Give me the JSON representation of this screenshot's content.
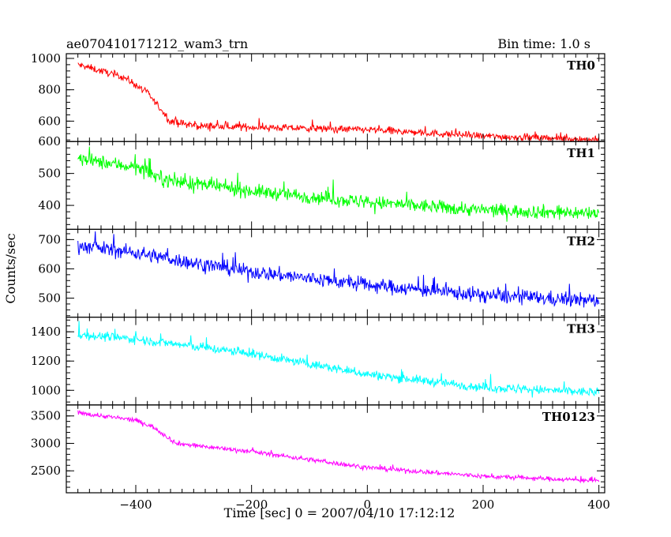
{
  "header": {
    "title": "ae070410171212_wam3_trn",
    "bin_time": "Bin time: 1.0 s"
  },
  "axes": {
    "xlabel": "Time [sec] 0 = 2007/04/10 17:12:12",
    "ylabel": "Counts/sec"
  },
  "chart_data": [
    {
      "type": "line",
      "name": "TH0",
      "color": "#ff0000",
      "x_range": [
        -500,
        400
      ],
      "ylim": [
        470,
        1030
      ],
      "y_ticks": [
        {
          "v": 600,
          "label": "600"
        },
        {
          "v": 800,
          "label": "800"
        },
        {
          "v": 1000,
          "label": "1000"
        }
      ],
      "trend": [
        [
          -500,
          960
        ],
        [
          -420,
          880
        ],
        [
          -380,
          780
        ],
        [
          -340,
          600
        ],
        [
          -300,
          570
        ],
        [
          0,
          545
        ],
        [
          200,
          505
        ],
        [
          400,
          480
        ]
      ],
      "noise": 30,
      "spikes": 25
    },
    {
      "type": "line",
      "name": "TH1",
      "color": "#00ff00",
      "x_range": [
        -500,
        400
      ],
      "ylim": [
        325,
        600
      ],
      "y_ticks": [
        {
          "v": 400,
          "label": "400"
        },
        {
          "v": 500,
          "label": "500"
        },
        {
          "v": 600,
          "label": "600"
        }
      ],
      "trend": [
        [
          -500,
          545
        ],
        [
          -400,
          520
        ],
        [
          -350,
          480
        ],
        [
          -200,
          445
        ],
        [
          0,
          410
        ],
        [
          200,
          385
        ],
        [
          400,
          375
        ]
      ],
      "noise": 28,
      "spikes": 22
    },
    {
      "type": "line",
      "name": "TH2",
      "color": "#0000ff",
      "x_range": [
        -500,
        400
      ],
      "ylim": [
        435,
        735
      ],
      "y_ticks": [
        {
          "v": 500,
          "label": "500"
        },
        {
          "v": 600,
          "label": "600"
        },
        {
          "v": 700,
          "label": "700"
        }
      ],
      "trend": [
        [
          -500,
          680
        ],
        [
          -400,
          655
        ],
        [
          -300,
          620
        ],
        [
          -200,
          590
        ],
        [
          0,
          545
        ],
        [
          200,
          510
        ],
        [
          400,
          490
        ]
      ],
      "noise": 32,
      "spikes": 28
    },
    {
      "type": "line",
      "name": "TH3",
      "color": "#00ffff",
      "x_range": [
        -500,
        400
      ],
      "ylim": [
        900,
        1500
      ],
      "y_ticks": [
        {
          "v": 1000,
          "label": "1000"
        },
        {
          "v": 1200,
          "label": "1200"
        },
        {
          "v": 1400,
          "label": "1400"
        }
      ],
      "trend": [
        [
          -500,
          1380
        ],
        [
          -400,
          1350
        ],
        [
          -200,
          1250
        ],
        [
          0,
          1110
        ],
        [
          200,
          1020
        ],
        [
          400,
          985
        ]
      ],
      "noise": 40,
      "spikes": 35
    },
    {
      "type": "line",
      "name": "TH0123",
      "color": "#ff00ff",
      "x_range": [
        -500,
        400
      ],
      "ylim": [
        2100,
        3700
      ],
      "y_ticks": [
        {
          "v": 2500,
          "label": "2500"
        },
        {
          "v": 3000,
          "label": "3000"
        },
        {
          "v": 3500,
          "label": "3500"
        }
      ],
      "trend": [
        [
          -500,
          3560
        ],
        [
          -400,
          3420
        ],
        [
          -370,
          3300
        ],
        [
          -330,
          3000
        ],
        [
          -200,
          2850
        ],
        [
          0,
          2560
        ],
        [
          200,
          2400
        ],
        [
          400,
          2320
        ]
      ],
      "noise": 55,
      "spikes": 40
    }
  ],
  "x_ticks": [
    {
      "v": -400,
      "label": "−400"
    },
    {
      "v": -200,
      "label": "−200"
    },
    {
      "v": 0,
      "label": "0"
    },
    {
      "v": 200,
      "label": "200"
    },
    {
      "v": 400,
      "label": "400"
    }
  ]
}
